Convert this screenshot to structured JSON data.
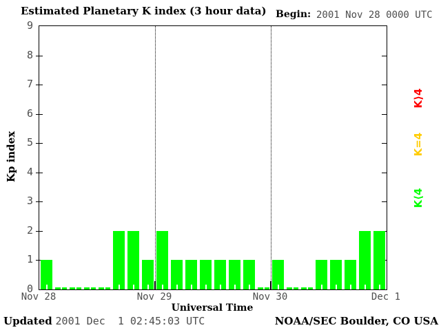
{
  "header": {
    "title": "Estimated Planetary K index (3 hour data)",
    "begin_label": "Begin:",
    "begin_value": "2001 Nov 28 0000 UTC"
  },
  "axis": {
    "ylabel": "Kp index",
    "xlabel": "Universal Time"
  },
  "legend": [
    {
      "name": "k-greater-than-4",
      "label": "K⟩4",
      "color": "#ff0000"
    },
    {
      "name": "k-equals-4",
      "label": "K=4",
      "color": "#ffcc00"
    },
    {
      "name": "k-less-than-4",
      "label": "K⟨4",
      "color": "#00ff00"
    }
  ],
  "footer": {
    "updated_label": "Updated",
    "updated_value": "2001 Dec  1 02:45:03 UTC",
    "credit": "NOAA/SEC Boulder, CO USA"
  },
  "chart_data": {
    "type": "bar",
    "title": "Estimated Planetary K index (3 hour data)",
    "begin": "2001 Nov 28 0000 UTC",
    "xlabel": "Universal Time",
    "ylabel": "Kp index",
    "ylim": [
      0,
      9
    ],
    "y_ticks": [
      0,
      1,
      2,
      3,
      4,
      5,
      6,
      7,
      8,
      9
    ],
    "x_tick_labels": [
      "Nov 28",
      "Nov 29",
      "Nov 30",
      "Dec 1"
    ],
    "bar_interval_hours": 3,
    "bars_per_day": 8,
    "bar_color": "#00ff00",
    "grid": "dotted vertical lines at day boundaries",
    "legend_position": "right, rotated 90deg",
    "series": [
      {
        "day": "Nov 28",
        "values": [
          1,
          0,
          0,
          0,
          0,
          2,
          2,
          1
        ]
      },
      {
        "day": "Nov 29",
        "values": [
          2,
          1,
          1,
          1,
          1,
          1,
          1,
          0
        ]
      },
      {
        "day": "Nov 30",
        "values": [
          1,
          0,
          0,
          1,
          1,
          1,
          2,
          2
        ]
      }
    ]
  }
}
